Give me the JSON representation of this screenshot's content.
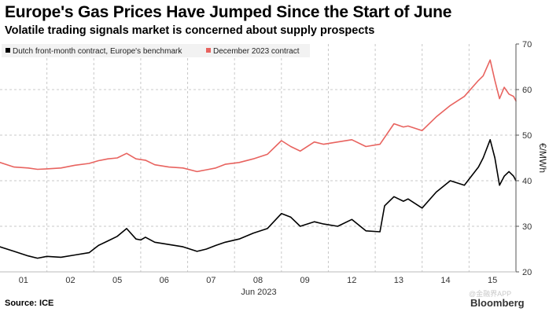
{
  "title": "Europe's Gas Prices Have Jumped Since the Start of June",
  "subtitle": "Volatile trading signals market is concerned about supply prospects",
  "source": "Source: ICE",
  "brand": "Bloomberg",
  "watermark": "@金融界APP",
  "chart_data": {
    "type": "line",
    "title": "Europe's Gas Prices Have Jumped Since the Start of June",
    "xlabel": "Jun 2023",
    "ylabel": "€/MWh",
    "ylim": [
      20,
      70
    ],
    "yticks": [
      20,
      30,
      40,
      50,
      60,
      70
    ],
    "xlim": [
      0,
      11
    ],
    "x_tick_labels": [
      "01",
      "02",
      "05",
      "06",
      "07",
      "08",
      "09",
      "12",
      "13",
      "14",
      "15"
    ],
    "x_tick_positions": [
      0.5,
      1.5,
      2.5,
      3.5,
      4.5,
      5.5,
      6.5,
      7.5,
      8.5,
      9.5,
      10.5
    ],
    "grid": true,
    "legend_position": "top-left",
    "colors": {
      "benchmark": "#000000",
      "december": "#e8635f",
      "grid": "#c8c8c8"
    },
    "series": [
      {
        "name": "Dutch front-month contract, Europe's benchmark",
        "color": "#000000",
        "x": [
          0,
          0.3,
          0.6,
          0.8,
          1.0,
          1.3,
          1.6,
          1.9,
          2.1,
          2.3,
          2.5,
          2.7,
          2.9,
          3.0,
          3.1,
          3.3,
          3.6,
          3.9,
          4.2,
          4.4,
          4.6,
          4.8,
          5.1,
          5.4,
          5.7,
          6.0,
          6.2,
          6.4,
          6.7,
          6.9,
          7.2,
          7.5,
          7.8,
          8.1,
          8.2,
          8.4,
          8.6,
          8.7,
          9.0,
          9.3,
          9.6,
          9.9,
          10.2,
          10.3,
          10.45,
          10.55,
          10.65,
          10.75,
          10.85,
          10.95,
          11.0
        ],
        "values": [
          25.5,
          24.5,
          23.5,
          23.0,
          23.4,
          23.2,
          23.7,
          24.2,
          25.8,
          26.8,
          27.8,
          29.5,
          27.2,
          27.0,
          27.6,
          26.5,
          26.0,
          25.5,
          24.5,
          25.0,
          25.8,
          26.5,
          27.2,
          28.5,
          29.5,
          32.8,
          32.0,
          30.0,
          31.0,
          30.5,
          30.0,
          31.5,
          29.0,
          28.8,
          34.5,
          36.5,
          35.5,
          36.0,
          34.0,
          37.5,
          40.0,
          39.0,
          43.0,
          45.0,
          49.0,
          45.0,
          39.0,
          41.0,
          42.0,
          41.0,
          40.0
        ]
      },
      {
        "name": "December 2023 contract",
        "color": "#e8635f",
        "x": [
          0,
          0.3,
          0.6,
          0.8,
          1.0,
          1.3,
          1.6,
          1.9,
          2.1,
          2.3,
          2.5,
          2.7,
          2.9,
          3.1,
          3.3,
          3.6,
          3.9,
          4.2,
          4.4,
          4.6,
          4.8,
          5.1,
          5.4,
          5.7,
          6.0,
          6.2,
          6.4,
          6.7,
          6.9,
          7.2,
          7.5,
          7.8,
          8.1,
          8.2,
          8.4,
          8.6,
          8.7,
          9.0,
          9.3,
          9.6,
          9.9,
          10.2,
          10.3,
          10.45,
          10.55,
          10.65,
          10.75,
          10.85,
          10.95,
          11.0
        ],
        "values": [
          44.0,
          43.0,
          42.8,
          42.5,
          42.6,
          42.8,
          43.4,
          43.8,
          44.4,
          44.8,
          45.0,
          46.0,
          44.8,
          44.5,
          43.5,
          43.0,
          42.8,
          42.0,
          42.4,
          42.8,
          43.6,
          44.0,
          44.8,
          45.8,
          48.8,
          47.5,
          46.5,
          48.5,
          48.0,
          48.5,
          49.0,
          47.5,
          48.0,
          49.5,
          52.5,
          51.8,
          52.0,
          51.0,
          54.0,
          56.5,
          58.5,
          62.0,
          63.0,
          66.5,
          62.0,
          58.0,
          60.5,
          59.0,
          58.5,
          57.5
        ]
      }
    ]
  }
}
